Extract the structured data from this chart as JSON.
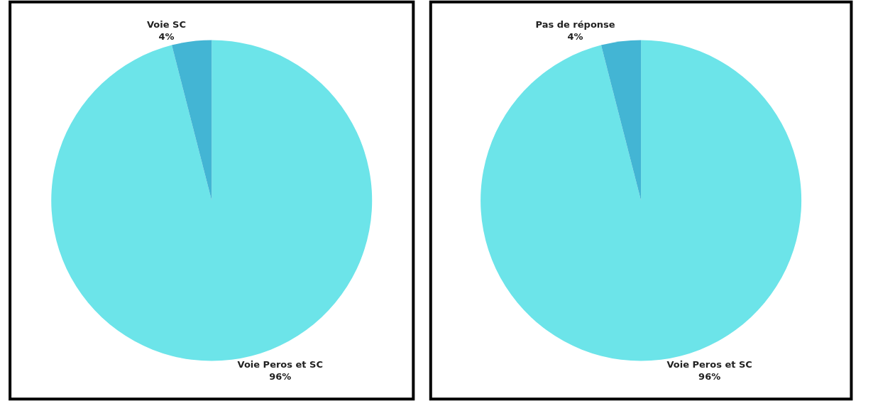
{
  "chart_data": [
    {
      "type": "pie",
      "categories": [
        "Voie Peros et SC",
        "Voie SC"
      ],
      "values": [
        96,
        4
      ],
      "value_labels": [
        "96%",
        "4%"
      ],
      "colors": [
        "#6ce4e9",
        "#43b5d4"
      ],
      "legend": false
    },
    {
      "type": "pie",
      "categories": [
        "Voie Peros et SC",
        "Pas de réponse"
      ],
      "values": [
        96,
        4
      ],
      "value_labels": [
        "96%",
        "4%"
      ],
      "colors": [
        "#6ce4e9",
        "#43b5d4"
      ],
      "legend": false
    }
  ]
}
